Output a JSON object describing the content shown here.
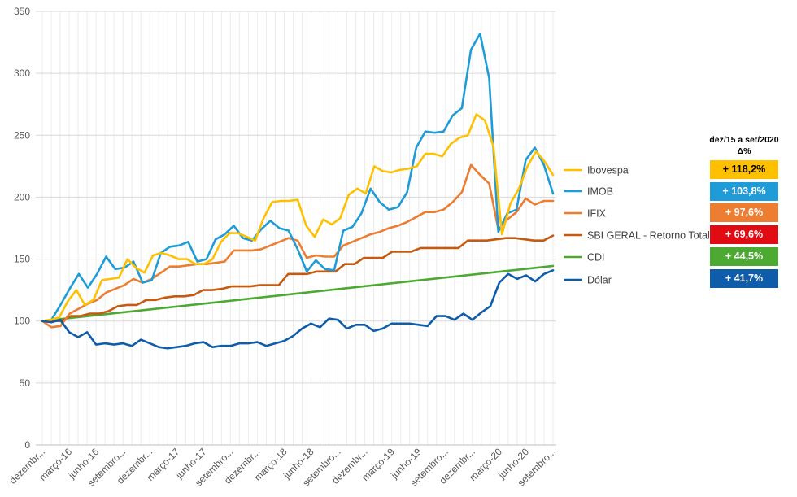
{
  "chart_data": {
    "type": "line",
    "ylim": [
      0,
      350
    ],
    "yticks": [
      0,
      50,
      100,
      150,
      200,
      250,
      300,
      350
    ],
    "xtick_labels": [
      "dezembr...",
      "março-16",
      "junho-16",
      "setembro...",
      "dezembr...",
      "março-17",
      "junho-17",
      "setembro...",
      "dezembr...",
      "março-18",
      "junho-18",
      "setembro...",
      "dezembr...",
      "março-19",
      "junho-19",
      "setembro...",
      "dezembr...",
      "março-20",
      "junho-20",
      "setembro..."
    ],
    "grid": true,
    "legend_position": "right",
    "series": [
      {
        "name": "Ibovespa",
        "color": "#FFC000",
        "values": [
          100,
          101,
          103,
          116,
          125,
          113,
          117,
          133,
          134,
          135,
          150,
          143,
          139,
          153,
          155,
          153,
          150,
          150,
          146,
          146,
          150,
          164,
          171,
          171,
          168,
          165,
          183,
          196,
          197,
          197,
          198,
          177,
          168,
          182,
          178,
          183,
          202,
          207,
          203,
          225,
          221,
          220,
          222,
          223,
          225,
          235,
          235,
          233,
          243,
          248,
          250,
          267,
          262,
          241,
          170,
          195,
          207,
          225,
          237,
          229,
          218
        ]
      },
      {
        "name": "IMOB",
        "color": "#1F9BD7",
        "values": [
          100,
          101,
          113,
          126,
          138,
          127,
          138,
          152,
          142,
          143,
          148,
          131,
          133,
          155,
          160,
          161,
          164,
          148,
          150,
          166,
          170,
          177,
          167,
          165,
          174,
          181,
          175,
          173,
          158,
          140,
          149,
          142,
          141,
          173,
          176,
          187,
          207,
          196,
          190,
          192,
          204,
          240,
          253,
          252,
          253,
          266,
          272,
          319,
          332,
          296,
          172,
          187,
          190,
          230,
          240,
          226,
          203
        ]
      },
      {
        "name": "IFIX",
        "color": "#ED7D31",
        "values": [
          100,
          95,
          96,
          106,
          110,
          114,
          117,
          123,
          126,
          129,
          134,
          131,
          134,
          139,
          144,
          144,
          145,
          146,
          146,
          147,
          148,
          157,
          157,
          157,
          158,
          161,
          164,
          167,
          165,
          151,
          153,
          152,
          152,
          161,
          164,
          167,
          170,
          172,
          175,
          177,
          180,
          184,
          188,
          188,
          190,
          196,
          204,
          226,
          218,
          211,
          174,
          182,
          188,
          199,
          194,
          197,
          197
        ]
      },
      {
        "name": "SBI GERAL - Retorno Total",
        "color": "#C55A11",
        "values": [
          100,
          100,
          100,
          104,
          104,
          106,
          106,
          108,
          112,
          113,
          113,
          117,
          117,
          119,
          120,
          120,
          121,
          125,
          125,
          126,
          128,
          128,
          128,
          129,
          129,
          129,
          138,
          138,
          138,
          140,
          140,
          140,
          146,
          146,
          151,
          151,
          151,
          156,
          156,
          156,
          159,
          159,
          159,
          159,
          159,
          165,
          165,
          165,
          166,
          167,
          167,
          166,
          165,
          165,
          169
        ]
      },
      {
        "name": "CDI",
        "color": "#4CA931",
        "values": [
          100,
          144.5
        ]
      },
      {
        "name": "Dólar",
        "color": "#0F5DAA",
        "values": [
          100,
          99,
          101,
          91,
          87,
          91,
          81,
          82,
          81,
          82,
          80,
          85,
          82,
          79,
          78,
          79,
          80,
          82,
          83,
          79,
          80,
          80,
          82,
          82,
          83,
          80,
          82,
          84,
          88,
          94,
          98,
          95,
          102,
          101,
          94,
          97,
          97,
          92,
          94,
          98,
          98,
          98,
          97,
          96,
          104,
          104,
          101,
          106,
          101,
          107,
          112,
          131,
          138,
          134,
          137,
          132,
          138,
          141
        ]
      }
    ],
    "header": "dez/15 a set/2020",
    "header_sub": "Δ%",
    "deltas": [
      {
        "label": "+ 118,2%",
        "bg": "#FFC000",
        "fg": "#000000"
      },
      {
        "label": "+ 103,8%",
        "bg": "#1F9BD7",
        "fg": "#ffffff"
      },
      {
        "label": "+ 97,6%",
        "bg": "#ED7D31",
        "fg": "#ffffff"
      },
      {
        "label": "+ 69,6%",
        "bg": "#E10B14",
        "fg": "#ffffff"
      },
      {
        "label": "+ 44,5%",
        "bg": "#4CA931",
        "fg": "#ffffff"
      },
      {
        "label": "+ 41,7%",
        "bg": "#0F5DAA",
        "fg": "#ffffff"
      }
    ]
  }
}
